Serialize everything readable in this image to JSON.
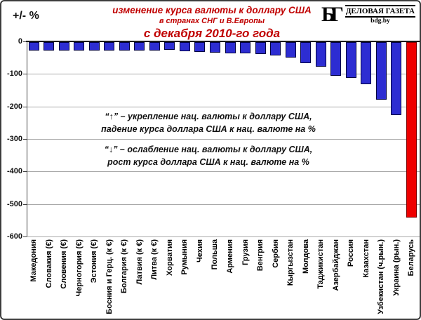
{
  "header": {
    "y_axis_unit": "+/- %",
    "title_line1": "изменение  курса валюты к доллару США",
    "title_line2": "в странах СНГ и В.Европы",
    "title_line3": "с декабря 2010-го года",
    "title_color": "#c00000",
    "logo": {
      "monogram": "БГ",
      "name": "ДЕЛОВАЯ ГАЗЕТА",
      "site": "bdg.by"
    }
  },
  "annotations": {
    "up_line1": "“↑” – укрепление нац. валюты к доллару США,",
    "up_line2": "падение курса доллара США к нац. валюте на %",
    "down_line1": "“↓” – ослабление нац. валюты к доллару США,",
    "down_line2": "рост курса доллара США к нац. валюте на %"
  },
  "chart_data": {
    "type": "bar",
    "title": "изменение курса валюты к доллару США в странах СНГ и В.Европы с декабря 2010-го года",
    "ylabel": "+/- %",
    "ylim": [
      -600,
      0
    ],
    "yticks": [
      0,
      -100,
      -200,
      -300,
      -400,
      -500,
      -600
    ],
    "grid": true,
    "legend_position": "none",
    "categories": [
      "Македония",
      "Словакия (€)",
      "Словения (€)",
      "Черногория (€)",
      "Эстония (€)",
      "Босния и Герц. (к €)",
      "Болгария (к €)",
      "Латвия (к €)",
      "Литва (к €)",
      "Хорватия",
      "Румыния",
      "Чехия",
      "Польша",
      "Армения",
      "Грузия",
      "Венгрия",
      "Сербия",
      "Кыргызстан",
      "Молдова",
      "Таджикистан",
      "Азербайджан",
      "Россия",
      "Казахстан",
      "Узбекистан (ч.рын.)",
      "Украина (рын.)",
      "Беларусь"
    ],
    "values": [
      -25,
      -25,
      -25,
      -25,
      -25,
      -25,
      -25,
      -26,
      -25,
      -23,
      -29,
      -30,
      -33,
      -35,
      -35,
      -37,
      -40,
      -48,
      -65,
      -76,
      -104,
      -111,
      -129,
      -178,
      -225,
      -540
    ],
    "bar_color": "#2d2dd2",
    "bar_border_color": "#000040",
    "highlight_category": "Беларусь",
    "highlight_color": "#ee0000",
    "highlight_border_color": "#7a0000",
    "gridline_color": "#a8a8a8"
  }
}
